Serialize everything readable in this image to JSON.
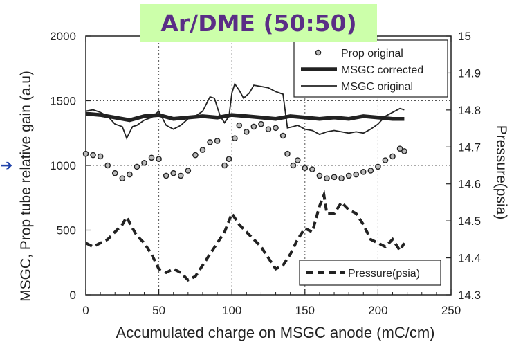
{
  "chart_data": {
    "type": "line",
    "title": "Ar/DME (50:50)",
    "xlabel": "Accumulated charge on MSGC anode (mC/cm)",
    "ylabel": "MSGC, Prop tube relative gain (a.u)",
    "y2label": "Pressure(psia)",
    "xlim": [
      0,
      250
    ],
    "ylim": [
      0,
      2000
    ],
    "y2lim": [
      14.3,
      15
    ],
    "xticks": [
      "0",
      "50",
      "100",
      "150",
      "200",
      "250"
    ],
    "yticks": [
      "0",
      "500",
      "1000",
      "1500",
      "2000"
    ],
    "y2ticks": [
      "14.3",
      "14.4",
      "14.5",
      "14.6",
      "14.7",
      "14.8",
      "14.9",
      "15"
    ],
    "grid": true,
    "legend_main": "top-right",
    "legend_pressure": "bottom-right",
    "series": [
      {
        "name": "Prop original",
        "style": "open-circle",
        "axis": "left",
        "x": [
          0,
          5,
          10,
          15,
          20,
          25,
          30,
          35,
          40,
          45,
          50,
          55,
          60,
          65,
          70,
          75,
          80,
          85,
          90,
          95,
          98,
          102,
          105,
          110,
          115,
          120,
          125,
          130,
          135,
          138,
          142,
          145,
          150,
          155,
          160,
          165,
          170,
          175,
          180,
          185,
          190,
          195,
          200,
          205,
          210,
          215,
          218
        ],
        "y": [
          1090,
          1080,
          1070,
          1000,
          940,
          900,
          930,
          990,
          1020,
          1060,
          1050,
          920,
          940,
          920,
          960,
          1080,
          1120,
          1180,
          1190,
          1000,
          1050,
          1210,
          1310,
          1260,
          1300,
          1320,
          1280,
          1290,
          1230,
          1090,
          1000,
          1040,
          980,
          970,
          920,
          900,
          910,
          900,
          920,
          930,
          950,
          960,
          990,
          1040,
          1070,
          1130,
          1110
        ]
      },
      {
        "name": "MSGC corrected",
        "style": "thick",
        "axis": "left",
        "x": [
          0,
          10,
          20,
          30,
          40,
          50,
          60,
          70,
          80,
          90,
          100,
          110,
          120,
          130,
          140,
          150,
          160,
          170,
          180,
          190,
          200,
          210,
          218
        ],
        "y": [
          1400,
          1390,
          1370,
          1350,
          1380,
          1390,
          1360,
          1370,
          1380,
          1370,
          1390,
          1380,
          1370,
          1360,
          1380,
          1370,
          1360,
          1370,
          1360,
          1380,
          1370,
          1360,
          1360
        ]
      },
      {
        "name": "MSGC original",
        "style": "thin",
        "axis": "left",
        "x": [
          0,
          5,
          10,
          15,
          20,
          25,
          28,
          32,
          35,
          40,
          45,
          50,
          55,
          60,
          65,
          70,
          75,
          80,
          85,
          88,
          92,
          95,
          98,
          100,
          102,
          105,
          108,
          112,
          115,
          120,
          125,
          130,
          135,
          138,
          142,
          145,
          150,
          155,
          160,
          165,
          170,
          175,
          180,
          185,
          190,
          195,
          200,
          205,
          210,
          215,
          218
        ],
        "y": [
          1420,
          1430,
          1410,
          1380,
          1320,
          1300,
          1210,
          1300,
          1310,
          1350,
          1370,
          1420,
          1310,
          1280,
          1310,
          1360,
          1380,
          1420,
          1530,
          1520,
          1380,
          1330,
          1380,
          1560,
          1630,
          1580,
          1520,
          1560,
          1620,
          1610,
          1600,
          1570,
          1550,
          1290,
          1300,
          1310,
          1280,
          1270,
          1240,
          1260,
          1270,
          1260,
          1250,
          1260,
          1250,
          1280,
          1320,
          1380,
          1410,
          1440,
          1430
        ]
      },
      {
        "name": "Pressure(psia)",
        "style": "dashed",
        "axis": "right",
        "x": [
          0,
          5,
          10,
          15,
          20,
          25,
          28,
          32,
          35,
          40,
          45,
          50,
          55,
          60,
          65,
          70,
          75,
          80,
          85,
          90,
          95,
          98,
          100,
          105,
          110,
          115,
          120,
          125,
          130,
          135,
          140,
          145,
          150,
          155,
          160,
          163,
          165,
          170,
          175,
          180,
          185,
          190,
          195,
          200,
          205,
          210,
          215,
          218
        ],
        "y": [
          14.44,
          14.43,
          14.44,
          14.45,
          14.47,
          14.49,
          14.51,
          14.48,
          14.46,
          14.44,
          14.41,
          14.37,
          14.36,
          14.37,
          14.36,
          14.34,
          14.35,
          14.38,
          14.41,
          14.44,
          14.47,
          14.5,
          14.52,
          14.49,
          14.47,
          14.45,
          14.43,
          14.4,
          14.37,
          14.38,
          14.41,
          14.45,
          14.48,
          14.47,
          14.54,
          14.57,
          14.52,
          14.52,
          14.55,
          14.53,
          14.52,
          14.49,
          14.45,
          14.44,
          14.43,
          14.45,
          14.42,
          14.44
        ]
      }
    ]
  },
  "decor": {
    "arrow_glyph": "➔"
  }
}
